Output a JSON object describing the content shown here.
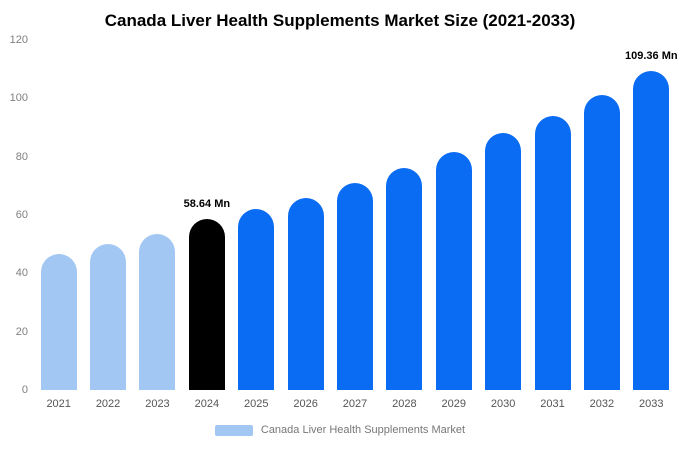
{
  "title": "Canada Liver Health Supplements Market Size (2021-2033)",
  "legend": {
    "label": "Canada Liver Health Supplements Market",
    "swatch_color": "#a3c7f3"
  },
  "colors": {
    "light_blue": "#a3c7f3",
    "primary_blue": "#0a6cf2",
    "highlight_black": "#000000"
  },
  "chart_data": {
    "type": "bar",
    "title": "Canada Liver Health Supplements Market Size (2021-2033)",
    "categories": [
      "2021",
      "2022",
      "2023",
      "2024",
      "2025",
      "2026",
      "2027",
      "2028",
      "2029",
      "2030",
      "2031",
      "2032",
      "2033"
    ],
    "values": [
      46.5,
      50,
      53.5,
      58.64,
      62,
      66,
      71,
      76,
      81.5,
      88,
      94,
      101,
      109.36
    ],
    "bar_colors": [
      "#a3c7f3",
      "#a3c7f3",
      "#a3c7f3",
      "#000000",
      "#0a6cf2",
      "#0a6cf2",
      "#0a6cf2",
      "#0a6cf2",
      "#0a6cf2",
      "#0a6cf2",
      "#0a6cf2",
      "#0a6cf2",
      "#0a6cf2"
    ],
    "annotations": [
      {
        "category": "2024",
        "text": "58.64 Mn"
      },
      {
        "category": "2033",
        "text": "109.36 Mn"
      }
    ],
    "xlabel": "",
    "ylabel": "",
    "ylim": [
      0,
      120
    ],
    "yticks": [
      0,
      20,
      40,
      60,
      80,
      100,
      120
    ],
    "grid": false,
    "legend_position": "bottom",
    "legend_entries": [
      "Canada Liver Health Supplements Market"
    ]
  }
}
